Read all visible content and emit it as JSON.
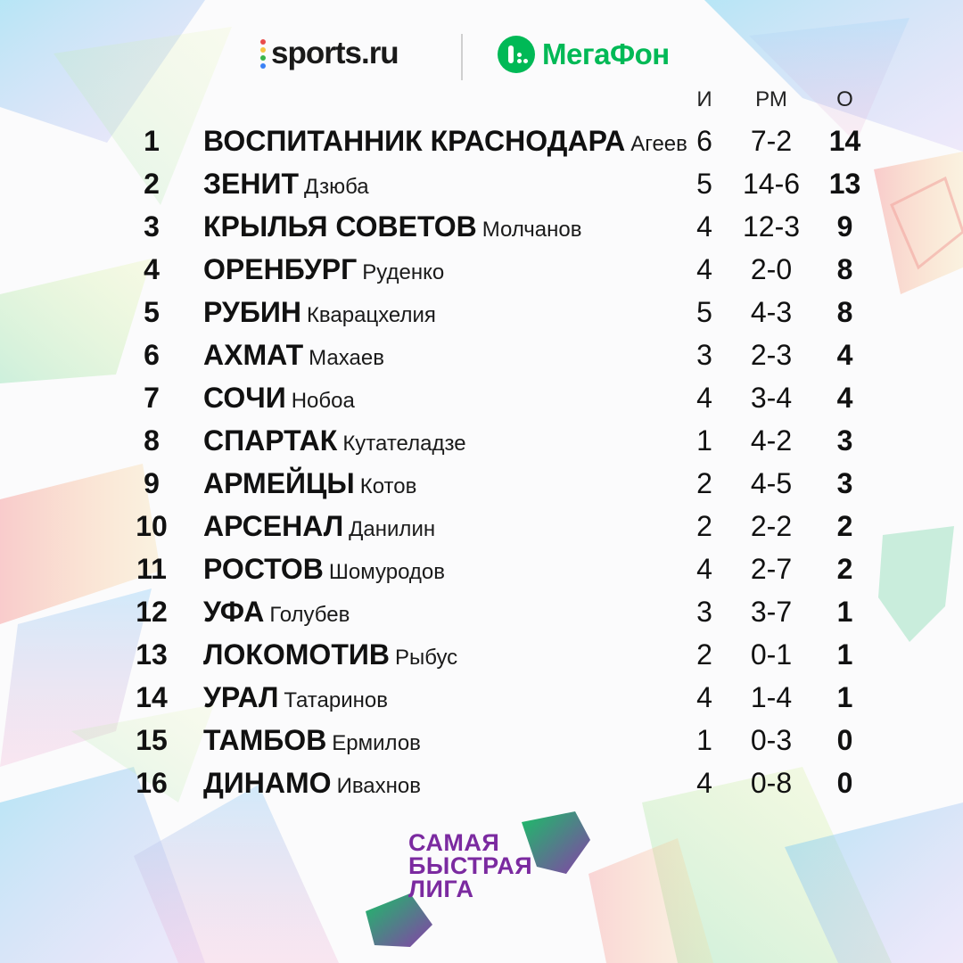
{
  "brand": {
    "sports_label": "sports.ru",
    "megafon_label": "МегаФон",
    "league_line1": "САМАЯ",
    "league_line2": "БЫСТРАЯ",
    "league_line3": "ЛИГА"
  },
  "colors": {
    "megafon_green": "#00b956",
    "league_purple": "#7b2aa0"
  },
  "table": {
    "headers": {
      "games": "И",
      "goals": "РМ",
      "points": "О"
    },
    "rows": [
      {
        "rank": "1",
        "team": "ВОСПИТАННИК КРАСНОДАРА",
        "coach": "Агеев",
        "games": "6",
        "goals": "7-2",
        "points": "14"
      },
      {
        "rank": "2",
        "team": "ЗЕНИТ",
        "coach": "Дзюба",
        "games": "5",
        "goals": "14-6",
        "points": "13"
      },
      {
        "rank": "3",
        "team": "КРЫЛЬЯ СОВЕТОВ",
        "coach": "Молчанов",
        "games": "4",
        "goals": "12-3",
        "points": "9"
      },
      {
        "rank": "4",
        "team": "ОРЕНБУРГ",
        "coach": "Руденко",
        "games": "4",
        "goals": "2-0",
        "points": "8"
      },
      {
        "rank": "5",
        "team": "РУБИН",
        "coach": "Кварацхелия",
        "games": "5",
        "goals": "4-3",
        "points": "8"
      },
      {
        "rank": "6",
        "team": "АХМАТ",
        "coach": "Махаев",
        "games": "3",
        "goals": "2-3",
        "points": "4"
      },
      {
        "rank": "7",
        "team": "СОЧИ",
        "coach": "Нобоа",
        "games": "4",
        "goals": "3-4",
        "points": "4"
      },
      {
        "rank": "8",
        "team": "СПАРТАК",
        "coach": "Кутателадзе",
        "games": "1",
        "goals": "4-2",
        "points": "3"
      },
      {
        "rank": "9",
        "team": "АРМЕЙЦЫ",
        "coach": "Котов",
        "games": "2",
        "goals": "4-5",
        "points": "3"
      },
      {
        "rank": "10",
        "team": "АРСЕНАЛ",
        "coach": "Данилин",
        "games": "2",
        "goals": "2-2",
        "points": "2"
      },
      {
        "rank": "11",
        "team": "РОСТОВ",
        "coach": "Шомуродов",
        "games": "4",
        "goals": "2-7",
        "points": "2"
      },
      {
        "rank": "12",
        "team": "УФА",
        "coach": "Голубев",
        "games": "3",
        "goals": "3-7",
        "points": "1"
      },
      {
        "rank": "13",
        "team": "ЛОКОМОТИВ",
        "coach": "Рыбус",
        "games": "2",
        "goals": "0-1",
        "points": "1"
      },
      {
        "rank": "14",
        "team": "УРАЛ",
        "coach": "Татаринов",
        "games": "4",
        "goals": "1-4",
        "points": "1"
      },
      {
        "rank": "15",
        "team": "ТАМБОВ",
        "coach": "Ермилов",
        "games": "1",
        "goals": "0-3",
        "points": "0"
      },
      {
        "rank": "16",
        "team": "ДИНАМО",
        "coach": "Ивахнов",
        "games": "4",
        "goals": "0-8",
        "points": "0"
      }
    ]
  }
}
